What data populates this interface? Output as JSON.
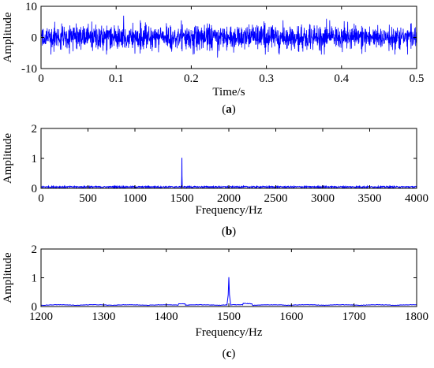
{
  "chart_data": [
    {
      "type": "line",
      "panel": "(a)",
      "caption_letter": "a",
      "xlabel": "Time/s",
      "ylabel": "Amplitude",
      "xlim": [
        0,
        0.5
      ],
      "ylim": [
        -10,
        10
      ],
      "xticks": [
        0,
        0.1,
        0.2,
        0.3,
        0.4,
        0.5
      ],
      "xtick_labels": [
        "0",
        "0.1",
        "0.2",
        "0.3",
        "0.4",
        "0.5"
      ],
      "yticks": [
        -10,
        0,
        10
      ],
      "ytick_labels": [
        "-10",
        "0",
        "10"
      ],
      "grid": false,
      "series": [
        {
          "color": "#0000ff",
          "signal": "noisy sinusoid, amplitude mostly within -4 to 4 with spikes near ±6",
          "x": [
            0,
            0.05,
            0.1,
            0.11,
            0.15,
            0.2,
            0.235,
            0.25,
            0.3,
            0.35,
            0.38,
            0.4,
            0.45,
            0.5
          ],
          "y": [
            1,
            -2,
            3,
            7,
            -3,
            2,
            -6.5,
            3,
            -2,
            2.5,
            6,
            -3,
            2,
            1
          ]
        }
      ]
    },
    {
      "type": "line",
      "panel": "(b)",
      "caption_letter": "b",
      "xlabel": "Frequency/Hz",
      "ylabel": "Amplitude",
      "xlim": [
        0,
        4000
      ],
      "ylim": [
        0,
        2
      ],
      "xticks": [
        0,
        500,
        1000,
        1500,
        2000,
        2500,
        3000,
        3500,
        4000
      ],
      "xtick_labels": [
        "0",
        "500",
        "1000",
        "1500",
        "2000",
        "2500",
        "3000",
        "3500",
        "4000"
      ],
      "yticks": [
        0,
        1,
        2
      ],
      "ytick_labels": [
        "0",
        "1",
        "2"
      ],
      "grid": false,
      "series": [
        {
          "color": "#0000ff",
          "noise_floor": 0.05,
          "x": [
            0,
            1490,
            1500,
            1510,
            4000
          ],
          "y": [
            0.03,
            0.05,
            1.02,
            0.05,
            0.03
          ]
        }
      ]
    },
    {
      "type": "line",
      "panel": "(c)",
      "caption_letter": "c",
      "xlabel": "Frequency/Hz",
      "ylabel": "Amplitude",
      "xlim": [
        1200,
        1800
      ],
      "ylim": [
        0,
        2
      ],
      "xticks": [
        1200,
        1300,
        1400,
        1500,
        1600,
        1700,
        1800
      ],
      "xtick_labels": [
        "1200",
        "1300",
        "1400",
        "1500",
        "1600",
        "1700",
        "1800"
      ],
      "yticks": [
        0,
        1,
        2
      ],
      "ytick_labels": [
        "0",
        "1",
        "2"
      ],
      "grid": false,
      "series": [
        {
          "color": "#0000ff",
          "noise_floor": 0.05,
          "x": [
            1200,
            1420,
            1430,
            1495,
            1500,
            1505,
            1530,
            1800
          ],
          "y": [
            0.04,
            0.05,
            0.1,
            0.06,
            1.02,
            0.06,
            0.1,
            0.04
          ]
        }
      ]
    }
  ]
}
